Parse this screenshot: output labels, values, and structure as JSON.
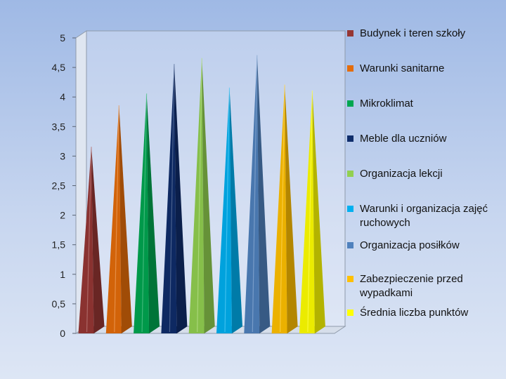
{
  "chart_data": {
    "type": "bar",
    "categories": [
      "Budynek i teren szkoły",
      "Warunki sanitarne",
      "Mikroklimat",
      "Meble dla uczniów",
      "Organizacja lekcji",
      "Warunki i organizacja zajęć ruchowych",
      "Organizacja posiłków",
      "Zabezpieczenie przed wypadkami",
      "Średnia liczba punktów"
    ],
    "series": [
      {
        "values": [
          3.1,
          3.8,
          4.0,
          4.5,
          4.6,
          4.1,
          4.65,
          4.15,
          4.05
        ]
      }
    ],
    "colors": [
      "#963634",
      "#e46c0a",
      "#00a650",
      "#0f2d6b",
      "#92d050",
      "#00b0f0",
      "#4f81bd",
      "#ffc000",
      "#ffff00"
    ],
    "yticks": [
      "0",
      "0,5",
      "1",
      "1,5",
      "2",
      "2,5",
      "3",
      "3,5",
      "4",
      "4,5",
      "5"
    ],
    "ylim": [
      0,
      5
    ],
    "legend_position": "right",
    "legend": [
      "Budynek i teren szkoły",
      "Warunki sanitarne",
      "Mikroklimat",
      "Meble dla uczniów",
      "Organizacja lekcji",
      "Warunki i organizacja zajęć ruchowych",
      "Organizacja posiłków",
      "Zabezpieczenie przed wypadkami",
      "Średnia liczba punktów"
    ],
    "grid": false,
    "title": "",
    "xlabel": "",
    "ylabel": ""
  }
}
